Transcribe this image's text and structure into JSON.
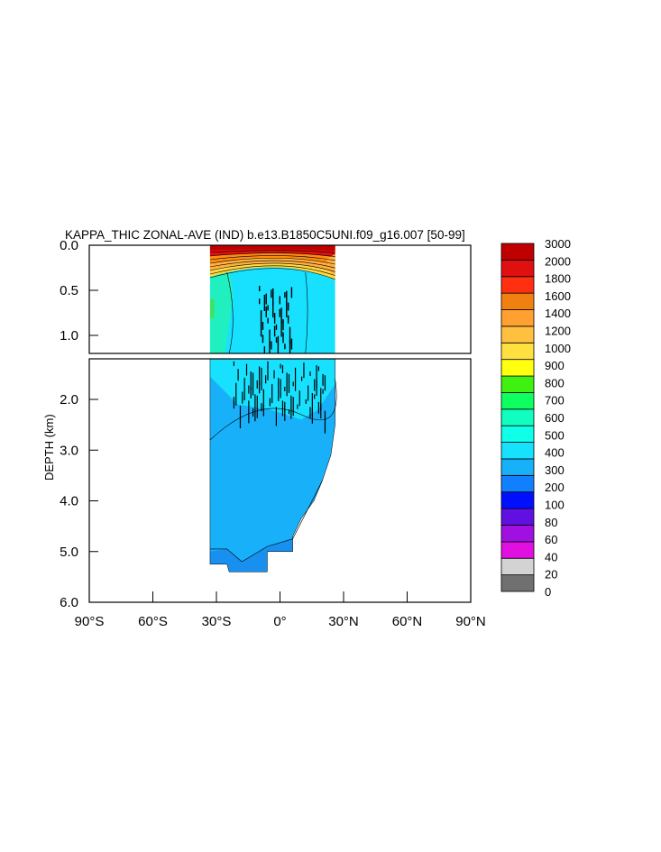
{
  "chart_data": {
    "type": "heatmap",
    "title": "KAPPA_THIC ZONAL-AVE (IND) b.e13.B1850C5UNI.f09_g16.007 [50-99]",
    "ylabel": "DEPTH (km)",
    "x_tick_labels": [
      {
        "lat": -90,
        "label": "90°S"
      },
      {
        "lat": -60,
        "label": "60°S"
      },
      {
        "lat": -30,
        "label": "30°S"
      },
      {
        "lat": 0,
        "label": "0°"
      },
      {
        "lat": 30,
        "label": "30°N"
      },
      {
        "lat": 60,
        "label": "60°N"
      },
      {
        "lat": 90,
        "label": "90°N"
      }
    ],
    "xlim": [
      -90,
      90
    ],
    "upper_panel": {
      "ylim": [
        0.0,
        1.2
      ],
      "y_ticks": [
        {
          "value": 0.0,
          "label": "0.0"
        },
        {
          "value": 0.5,
          "label": "0.5"
        },
        {
          "value": 1.0,
          "label": "1.0"
        }
      ]
    },
    "lower_panel": {
      "ylim": [
        1.2,
        6.0
      ],
      "y_ticks": [
        {
          "value": 2.0,
          "label": "2.0"
        },
        {
          "value": 3.0,
          "label": "3.0"
        },
        {
          "value": 4.0,
          "label": "4.0"
        },
        {
          "value": 5.0,
          "label": "5.0"
        },
        {
          "value": 6.0,
          "label": "6.0"
        }
      ]
    },
    "colorbar": {
      "levels": [
        "0",
        "20",
        "40",
        "60",
        "80",
        "100",
        "200",
        "300",
        "400",
        "500",
        "600",
        "700",
        "800",
        "900",
        "1000",
        "1200",
        "1400",
        "1600",
        "1800",
        "2000",
        "3000"
      ],
      "colors": [
        "#707070",
        "#d3d3d3",
        "#e010e0",
        "#a010e0",
        "#6010e0",
        "#0010ff",
        "#1080ff",
        "#18b0f8",
        "#18e0ff",
        "#10ffe8",
        "#10ffc0",
        "#10ff60",
        "#40f010",
        "#ffff10",
        "#ffe040",
        "#ffc040",
        "#ffa030",
        "#f08010",
        "#ff3010",
        "#e01010",
        "#c00000"
      ]
    },
    "field_regions": {
      "basin_lat_range": [
        -33,
        26
      ],
      "surface_layer": {
        "value_range": [
          1000,
          3000
        ],
        "depth_km": [
          0.0,
          0.1
        ],
        "color_level": 20
      },
      "thermocline": {
        "value_range": [
          400,
          1000
        ],
        "depth_km": [
          0.05,
          0.4
        ]
      },
      "mid_depth": {
        "value": 400,
        "depth_km": [
          0.2,
          1.8
        ]
      },
      "southern_mid_depth": {
        "value": 500,
        "lat_range": [
          -33,
          -25
        ],
        "depth_km": [
          0.3,
          1.0
        ]
      },
      "deep": {
        "value": 300,
        "depth_km": [
          1.8,
          5.0
        ]
      },
      "bottom": {
        "value": 200,
        "depth_km": [
          5.0,
          5.4
        ]
      }
    }
  }
}
